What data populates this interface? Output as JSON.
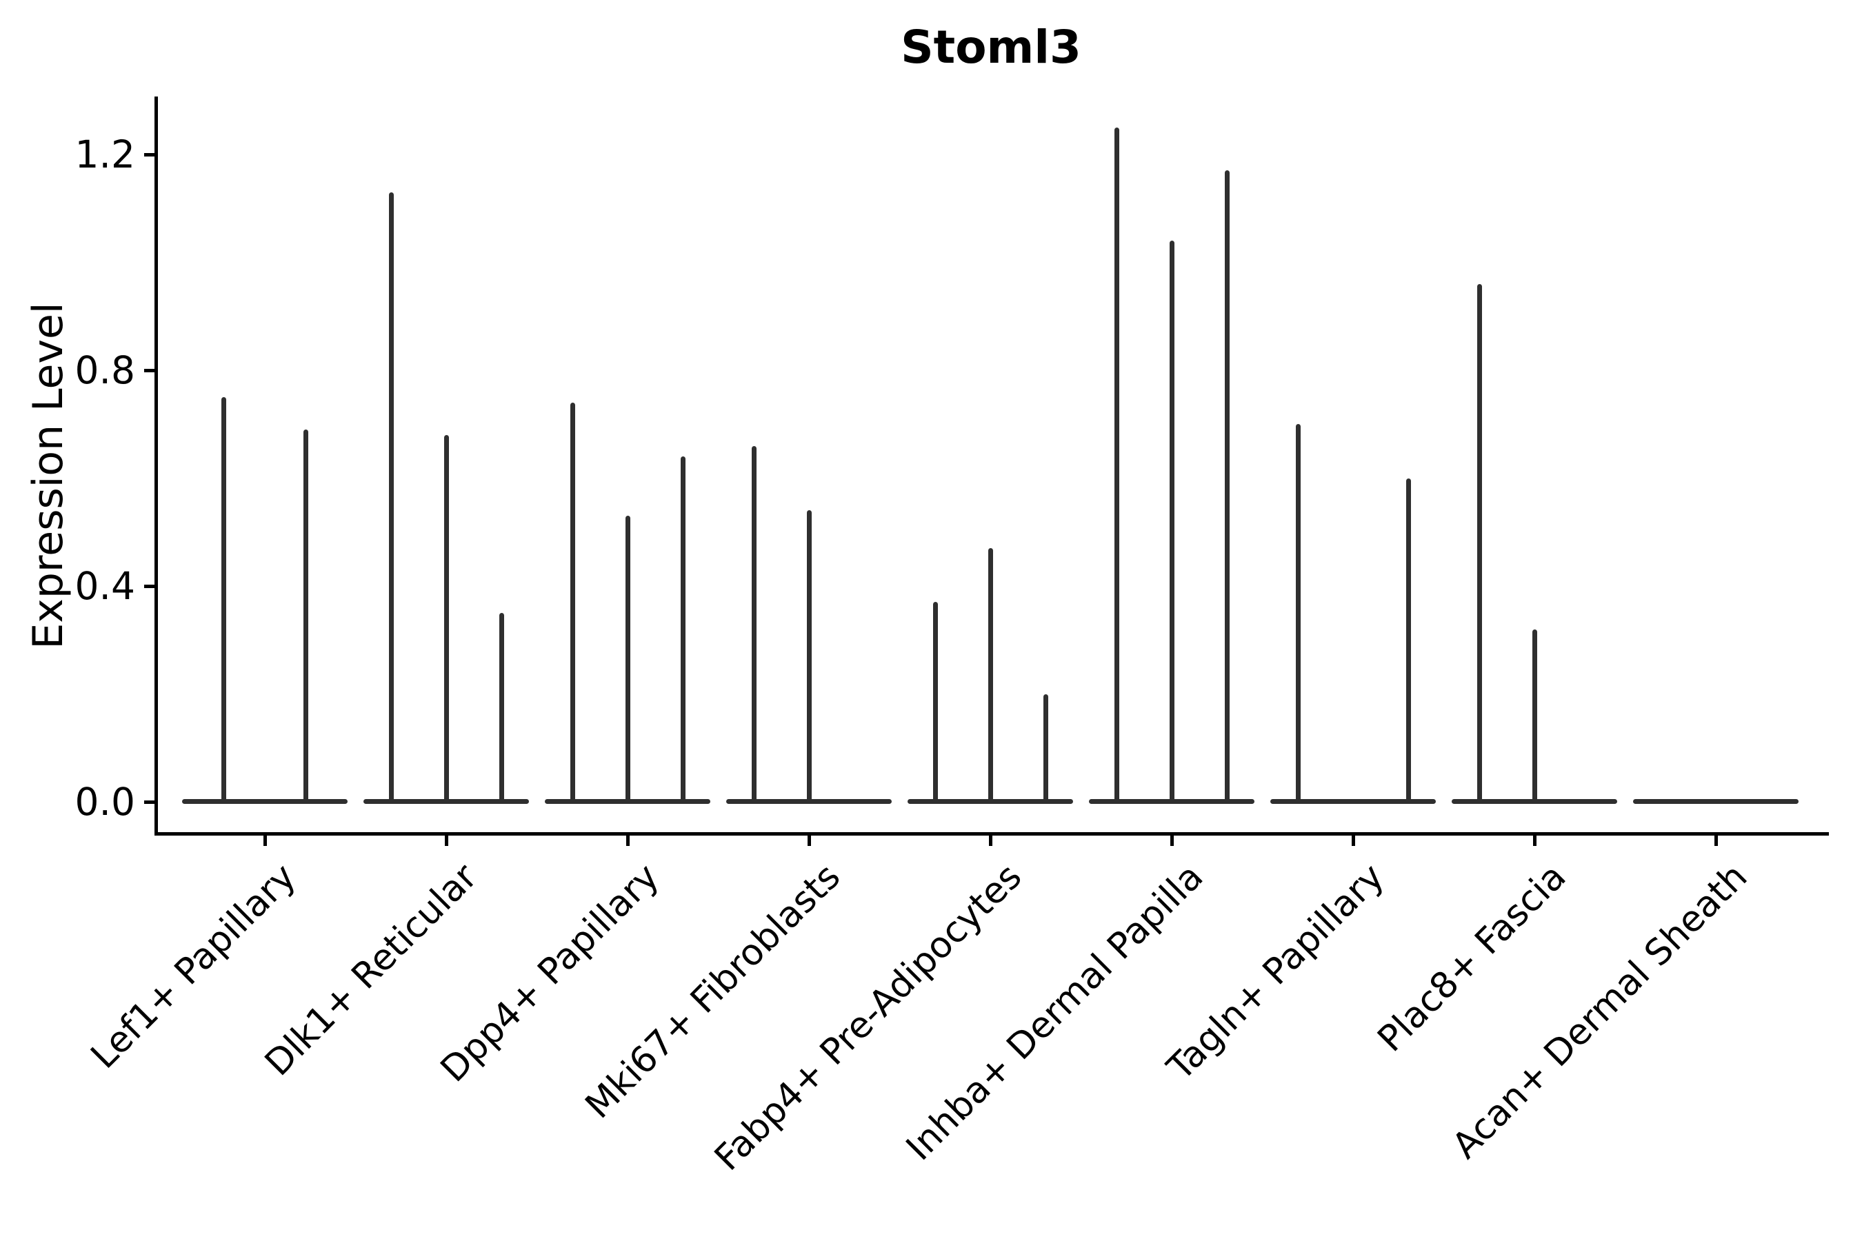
{
  "title": "Stoml3",
  "y_axis": {
    "label": "Expression Level",
    "tick_labels": [
      "1.2",
      "0.8",
      "0.4",
      "0.0"
    ]
  },
  "x_axis": {
    "categories": [
      "Lef1+ Papillary",
      "Dlk1+ Reticular",
      "Dpp4+ Papillary",
      "Mki67+ Fibroblasts",
      "Fabp4+ Pre-Adipocytes",
      "Inhba+ Dermal Papilla",
      "Tagln+ Papillary",
      "Plac8+ Fascia",
      "Acan+ Dermal Sheath"
    ]
  },
  "colors": {
    "violin": "#2f2f2f",
    "axis": "#000000",
    "background": "#ffffff"
  },
  "chart_data": {
    "type": "violin",
    "title": "Stoml3",
    "xlabel": "",
    "ylabel": "Expression Level",
    "ylim": [
      0,
      1.32
    ],
    "yticks": [
      0.0,
      0.4,
      0.8,
      1.2
    ],
    "grid": false,
    "legend": "none",
    "categories": [
      "Lef1+ Papillary",
      "Dlk1+ Reticular",
      "Dpp4+ Papillary",
      "Mki67+ Fibroblasts",
      "Fabp4+ Pre-Adipocytes",
      "Inhba+ Dermal Papilla",
      "Tagln+ Papillary",
      "Plac8+ Fascia",
      "Acan+ Dermal Sheath"
    ],
    "note": "Each category holds 2-3 narrow violins: a wide flat base at expression 0 with a thin vertical spike reaching the maximum expression value; 0 means no spike for that violin slot.",
    "groups": [
      {
        "category": "Lef1+ Papillary",
        "violin_maxima": [
          0.75,
          0.69
        ]
      },
      {
        "category": "Dlk1+ Reticular",
        "violin_maxima": [
          1.13,
          0.68,
          0.35
        ]
      },
      {
        "category": "Dpp4+ Papillary",
        "violin_maxima": [
          0.74,
          0.53,
          0.64
        ]
      },
      {
        "category": "Mki67+ Fibroblasts",
        "violin_maxima": [
          0.66,
          0.54,
          0
        ]
      },
      {
        "category": "Fabp4+ Pre-Adipocytes",
        "violin_maxima": [
          0.37,
          0.47,
          0.2
        ]
      },
      {
        "category": "Inhba+ Dermal Papilla",
        "violin_maxima": [
          1.25,
          1.04,
          1.17
        ]
      },
      {
        "category": "Tagln+ Papillary",
        "violin_maxima": [
          0.7,
          0,
          0.6
        ]
      },
      {
        "category": "Plac8+ Fascia",
        "violin_maxima": [
          0.96,
          0.32,
          0
        ]
      },
      {
        "category": "Acan+ Dermal Sheath",
        "violin_maxima": [
          0,
          0,
          0
        ]
      }
    ]
  }
}
